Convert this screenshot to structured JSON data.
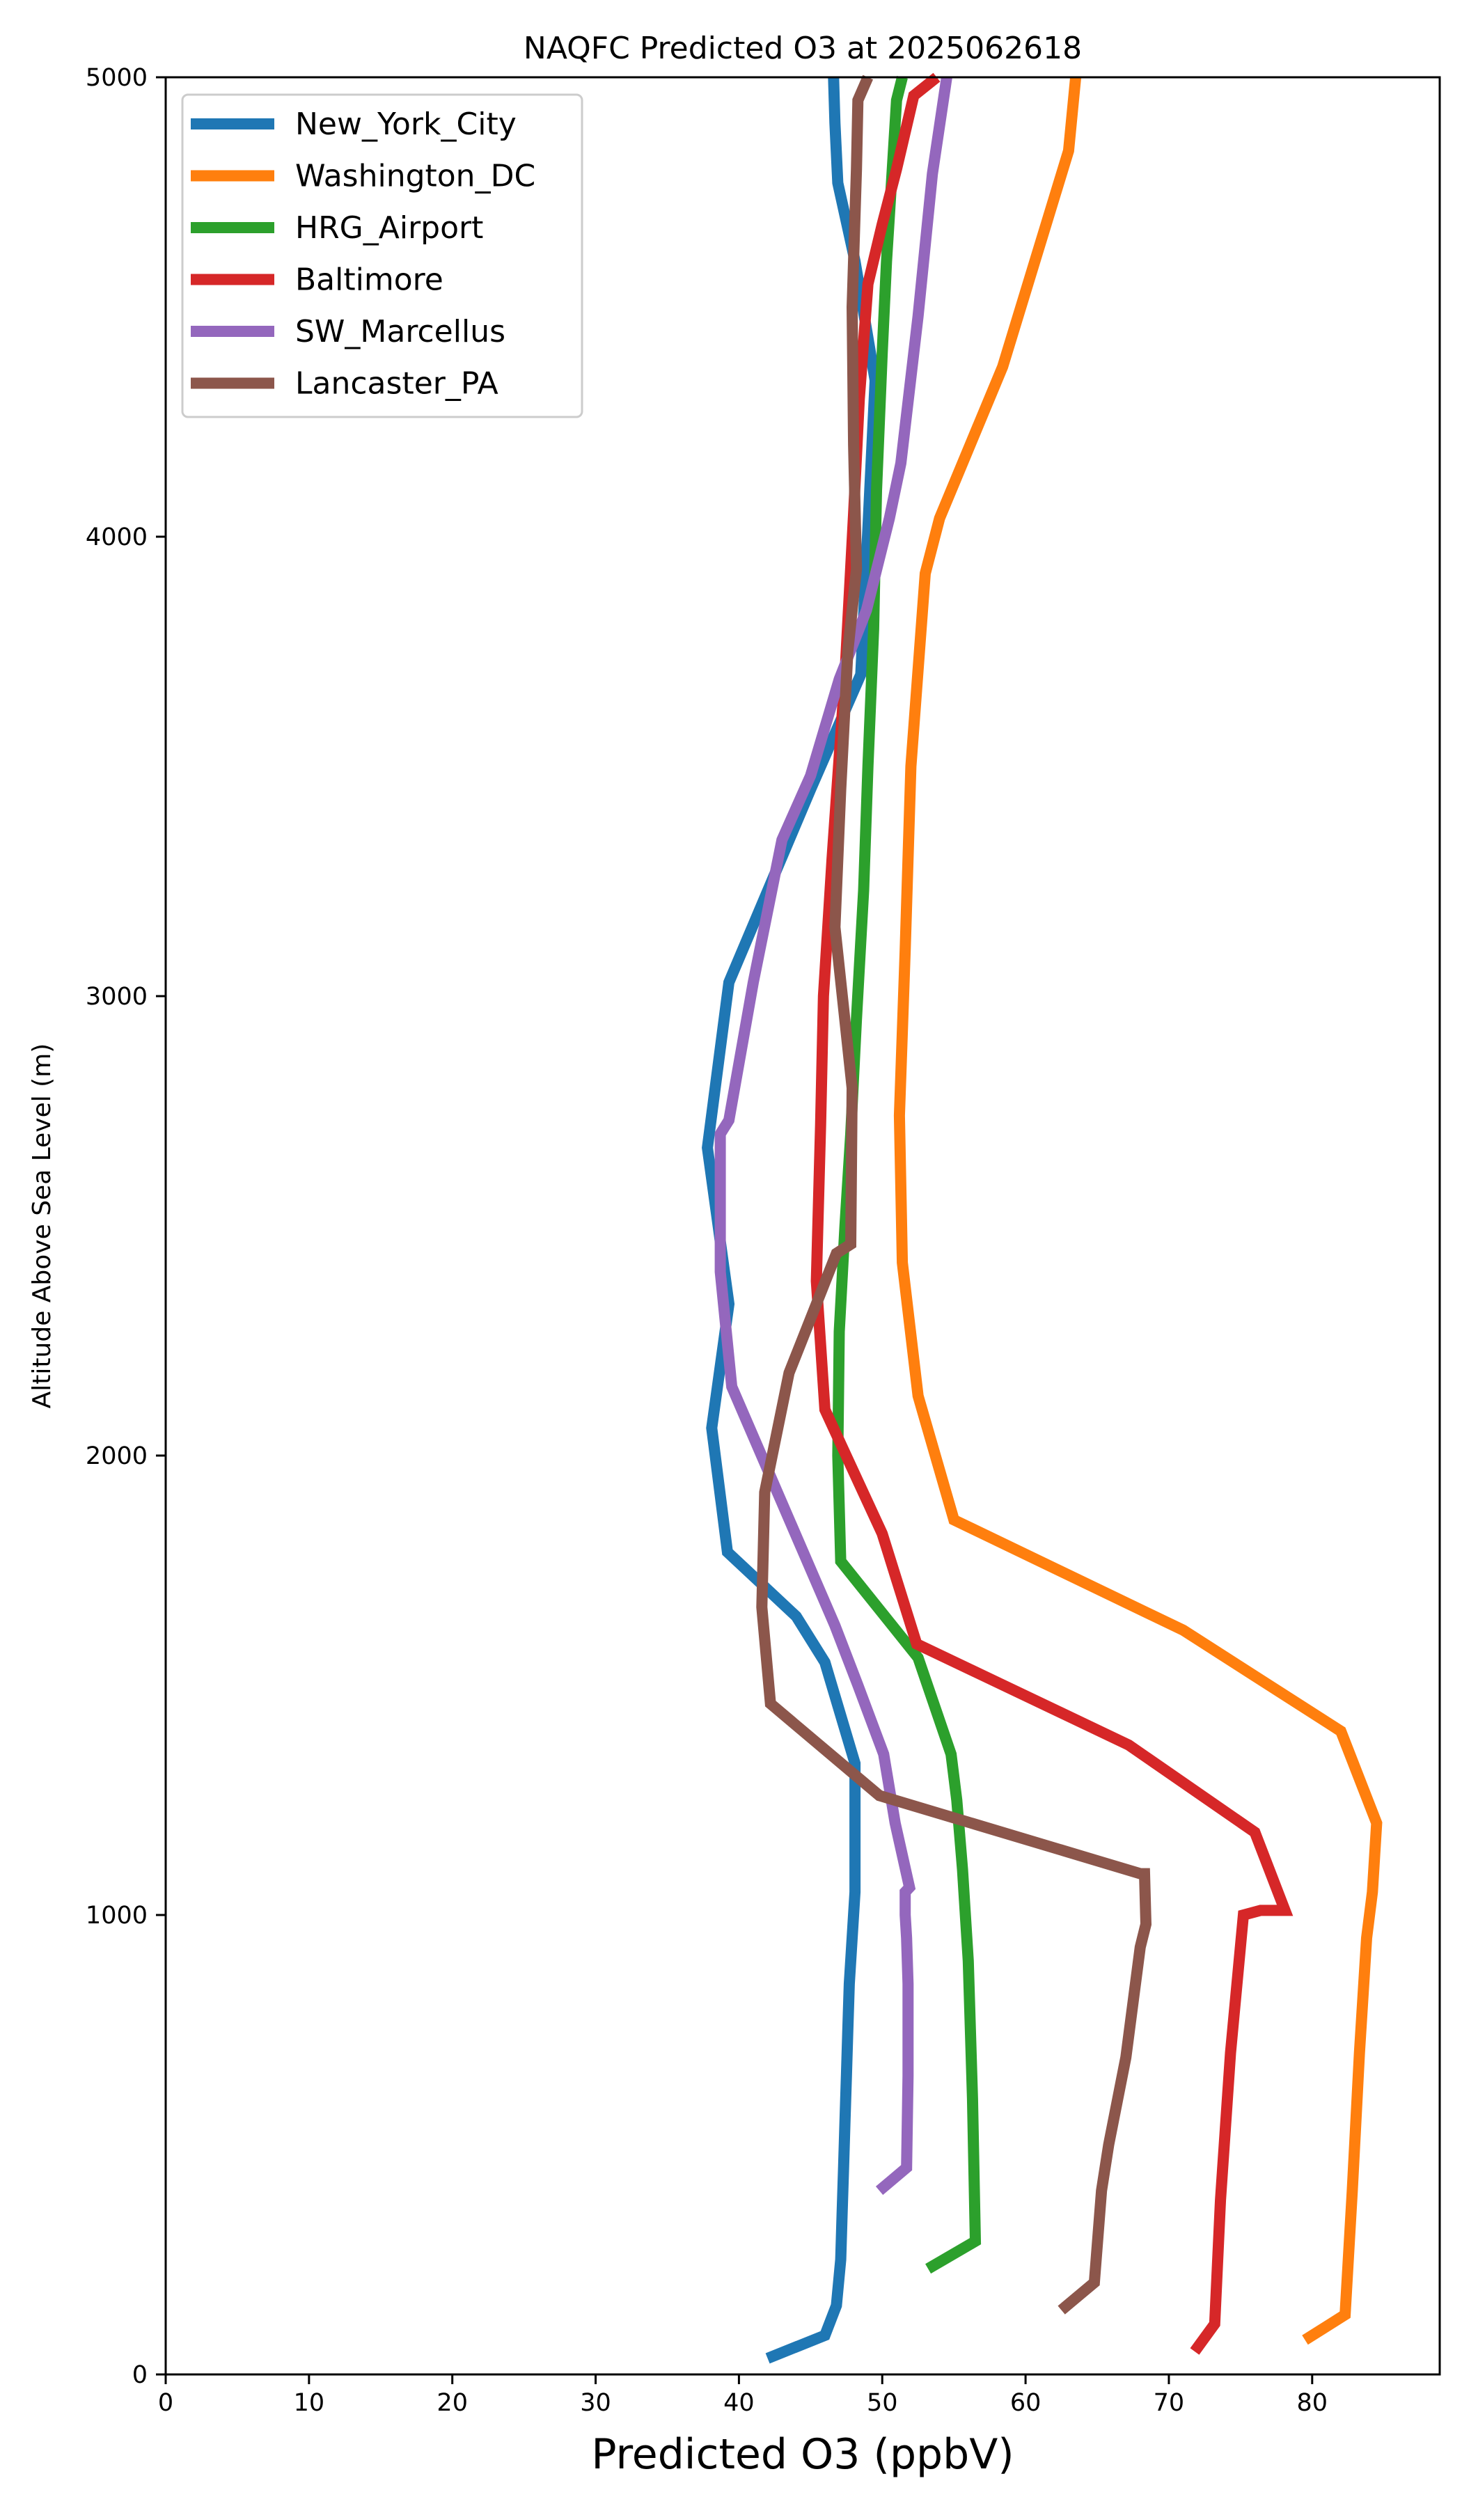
{
  "chart_data": {
    "type": "line",
    "title": "NAQFC Predicted O3 at 2025062618",
    "xlabel": "Predicted O3 (ppbV)",
    "ylabel": "Altitude Above Sea Level (m)",
    "xlim": [
      0,
      88.9
    ],
    "ylim": [
      0,
      5000
    ],
    "xticks": [
      0,
      10,
      20,
      30,
      40,
      50,
      60,
      70,
      80
    ],
    "yticks": [
      0,
      1000,
      2000,
      3000,
      4000,
      5000
    ],
    "grid": false,
    "legend_position": "upper-left",
    "series": [
      {
        "name": "New_York_City",
        "color": "#1f77b4",
        "x": [
          42.0,
          46.0,
          46.8,
          47.1,
          47.2,
          47.3,
          47.4,
          47.5,
          47.6,
          47.7,
          47.9,
          48.1,
          48.1,
          46.0,
          44.0,
          39.2,
          38.1,
          39.3,
          37.8,
          39.3,
          45.0,
          48.5,
          49.5,
          48.1,
          46.9,
          46.7,
          46.6
        ],
        "y": [
          35,
          85,
          150,
          250,
          350,
          450,
          550,
          650,
          750,
          850,
          950,
          1050,
          1330,
          1550,
          1650,
          1790,
          2060,
          2330,
          2670,
          3030,
          3450,
          3700,
          4340,
          4600,
          4770,
          4900,
          5000
        ]
      },
      {
        "name": "Washington_DC",
        "color": "#ff7f0e",
        "x": [
          79.5,
          82.3,
          82.8,
          83.3,
          83.8,
          84.2,
          84.5,
          84.5,
          82.0,
          71.0,
          55.0,
          52.5,
          51.4,
          51.2,
          51.6,
          52.0,
          53.0,
          54.0,
          58.4,
          63.0,
          63.5
        ],
        "y": [
          75,
          130,
          400,
          700,
          950,
          1050,
          1200,
          1200,
          1400,
          1620,
          1860,
          2130,
          2420,
          2740,
          3100,
          3500,
          3920,
          4040,
          4370,
          4840,
          5000
        ]
      },
      {
        "name": "HRG_Airport",
        "color": "#2ca02c",
        "x": [
          53.2,
          56.5,
          56.3,
          56.0,
          55.6,
          55.2,
          54.8,
          52.5,
          47.1,
          46.9,
          47.0,
          47.4,
          47.8,
          48.2,
          48.7,
          49.0,
          49.4,
          49.6,
          50.0,
          50.3,
          50.7,
          51.0,
          51.4
        ],
        "y": [
          230,
          290,
          600,
          900,
          1100,
          1250,
          1350,
          1560,
          1770,
          2000,
          2270,
          2500,
          2700,
          2950,
          3230,
          3500,
          3800,
          4100,
          4400,
          4600,
          4800,
          4950,
          5000
        ]
      },
      {
        "name": "Baltimore",
        "color": "#d62728",
        "x": [
          71.8,
          73.2,
          73.6,
          74.3,
          75.2,
          76.4,
          77.3,
          78.1,
          76.0,
          67.2,
          52.4,
          50.0,
          46.0,
          45.4,
          45.7,
          45.9,
          46.5,
          47.4,
          48.0,
          48.4,
          49.0,
          50.0,
          51.0,
          52.2,
          53.8
        ],
        "y": [
          50,
          110,
          380,
          700,
          1000,
          1010,
          1010,
          1010,
          1180,
          1370,
          1590,
          1830,
          2100,
          2380,
          2720,
          3000,
          3300,
          3700,
          4050,
          4300,
          4550,
          4680,
          4800,
          4960,
          5000
        ]
      },
      {
        "name": "SW_Marcellus",
        "color": "#9467bd",
        "x": [
          49.8,
          51.7,
          51.8,
          51.8,
          51.7,
          51.6,
          51.6,
          51.9,
          50.9,
          50.1,
          48.3,
          46.7,
          39.5,
          38.7,
          38.7,
          39.3,
          41.0,
          43.0,
          45.0,
          47.0,
          48.9,
          50.5,
          51.3,
          52.5,
          53.5,
          54.5
        ],
        "y": [
          400,
          450,
          650,
          850,
          950,
          1000,
          1050,
          1060,
          1200,
          1350,
          1500,
          1630,
          2150,
          2400,
          2700,
          2730,
          3030,
          3340,
          3480,
          3690,
          3840,
          4040,
          4160,
          4480,
          4790,
          5000
        ]
      },
      {
        "name": "Lancaster_PA",
        "color": "#8c564b",
        "x": [
          62.5,
          64.8,
          65.3,
          65.8,
          67.0,
          68.0,
          68.4,
          68.3,
          68.0,
          49.8,
          42.2,
          41.6,
          41.8,
          43.5,
          46.8,
          47.8,
          47.9,
          47.9,
          46.7,
          47.1,
          47.6,
          48.2,
          48.0,
          47.9,
          48.2,
          48.3,
          49.0
        ],
        "y": [
          140,
          200,
          400,
          500,
          690,
          930,
          980,
          1090,
          1090,
          1260,
          1460,
          1670,
          1920,
          2180,
          2440,
          2460,
          2800,
          2800,
          3150,
          3450,
          3750,
          3930,
          4200,
          4500,
          4800,
          4950,
          5000
        ]
      }
    ]
  }
}
